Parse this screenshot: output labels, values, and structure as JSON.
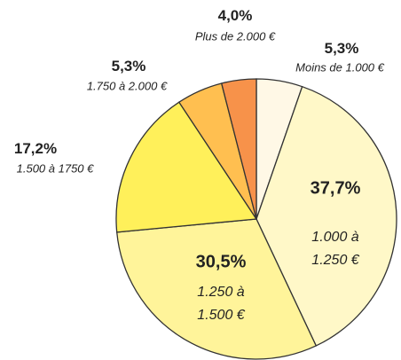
{
  "chart_data": {
    "type": "pie",
    "categories": [
      "Moins de 1.000 €",
      "1.000 à 1.250 €",
      "1.250 à 1.500 €",
      "1.500 à 1750 €",
      "1.750 à 2.000 €",
      "Plus de 2.000 €"
    ],
    "values": [
      5.3,
      37.7,
      30.5,
      17.2,
      5.3,
      4.0
    ],
    "value_labels": [
      "5,3%",
      "37,7%",
      "30,5%",
      "17,2%",
      "5,3%",
      "4,0%"
    ],
    "colors": [
      "#fff8e6",
      "#fff8c8",
      "#fff49a",
      "#fff05a",
      "#ffbf50",
      "#f7924a"
    ]
  }
}
